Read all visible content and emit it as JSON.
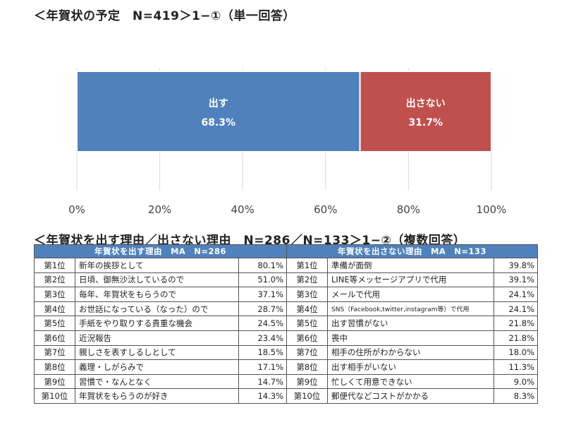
{
  "title1": "＜年賀状の予定　N=419＞1−①（単一回答）",
  "title2": "＜年賀状を出す理由／出さない理由　N=286／N=133＞1−②（複数回答）",
  "chart_data": {
    "type": "bar",
    "orientation": "horizontal-stacked",
    "series": [
      {
        "name": "出す",
        "value": 68.3,
        "label": "68.3%",
        "color": "#4f81bd"
      },
      {
        "name": "出さない",
        "value": 31.7,
        "label": "31.7%",
        "color": "#c0504d"
      }
    ],
    "xlim": [
      0,
      100
    ],
    "xticks": [
      0,
      20,
      40,
      60,
      80,
      100
    ],
    "xtick_labels": [
      "0%",
      "20%",
      "40%",
      "60%",
      "80%",
      "100%"
    ],
    "grid": true
  },
  "tables": {
    "reasons_send": {
      "header": "年賀状を出す理由　MA　N=286",
      "rows": [
        {
          "rank": "第1位",
          "reason": "新年の挨拶として",
          "pct": "80.1%"
        },
        {
          "rank": "第2位",
          "reason": "日頃、御無沙汰しているので",
          "pct": "51.0%"
        },
        {
          "rank": "第3位",
          "reason": "毎年、年賀状をもらうので",
          "pct": "37.1%"
        },
        {
          "rank": "第4位",
          "reason": "お世話になっている（なった）ので",
          "pct": "28.7%"
        },
        {
          "rank": "第5位",
          "reason": "手紙をやり取りする貴重な機会",
          "pct": "24.5%"
        },
        {
          "rank": "第6位",
          "reason": "近況報告",
          "pct": "23.4%"
        },
        {
          "rank": "第7位",
          "reason": "親しさを表すしるしとして",
          "pct": "18.5%"
        },
        {
          "rank": "第8位",
          "reason": "義理・しがらみで",
          "pct": "17.1%"
        },
        {
          "rank": "第9位",
          "reason": "習慣で・なんとなく",
          "pct": "14.7%"
        },
        {
          "rank": "第10位",
          "reason": "年賀状をもらうのが好き",
          "pct": "14.3%"
        }
      ]
    },
    "reasons_not_send": {
      "header": "年賀状を出さない理由　MA　N=133",
      "rows": [
        {
          "rank": "第1位",
          "reason": "準備が面倒",
          "pct": "39.8%"
        },
        {
          "rank": "第2位",
          "reason": "LINE等メッセージアプリで代用",
          "pct": "39.1%"
        },
        {
          "rank": "第3位",
          "reason": "メールで代用",
          "pct": "24.1%"
        },
        {
          "rank": "第4位",
          "reason": "SNS（Facebook,twitter,instagram等）で代用",
          "pct": "24.1%"
        },
        {
          "rank": "第5位",
          "reason": "出す習慣がない",
          "pct": "21.8%"
        },
        {
          "rank": "第6位",
          "reason": "喪中",
          "pct": "21.8%"
        },
        {
          "rank": "第7位",
          "reason": "相手の住所がわからない",
          "pct": "18.0%"
        },
        {
          "rank": "第8位",
          "reason": "出す相手がいない",
          "pct": "11.3%"
        },
        {
          "rank": "第9位",
          "reason": "忙しくて用意できない",
          "pct": "9.0%"
        },
        {
          "rank": "第10位",
          "reason": "郵便代などコストがかかる",
          "pct": "8.3%"
        }
      ]
    }
  }
}
